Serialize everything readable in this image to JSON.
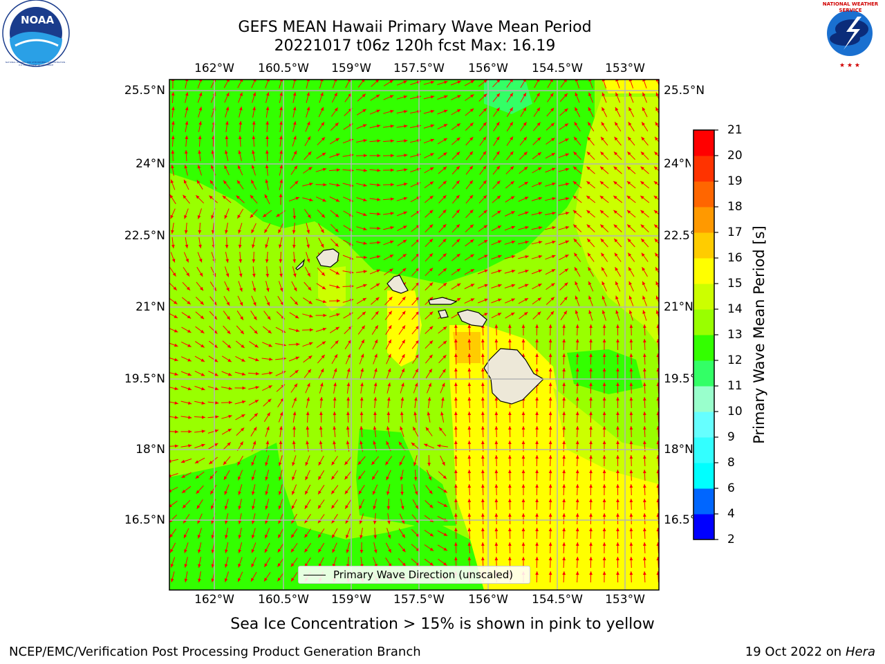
{
  "title_line1": "GEFS MEAN Hawaii Primary Wave Mean Period",
  "title_line2": "20221017 t06z 120h fcst   Max: 16.19",
  "lon_labels": [
    "162°W",
    "160.5°W",
    "159°W",
    "157.5°W",
    "156°W",
    "154.5°W",
    "153°W"
  ],
  "lat_labels": [
    "25.5°N",
    "24°N",
    "22.5°N",
    "21°N",
    "19.5°N",
    "18°N",
    "16.5°N"
  ],
  "colorbar": {
    "label": "Primary Wave Mean Period [s]",
    "ticks": [
      "2",
      "4",
      "6",
      "8",
      "9",
      "10",
      "11",
      "12",
      "13",
      "14",
      "15",
      "16",
      "17",
      "18",
      "19",
      "20",
      "21"
    ],
    "colors": [
      "#0000ff",
      "#0066ff",
      "#00ffff",
      "#33ffff",
      "#66ffff",
      "#99ffcc",
      "#33ff66",
      "#33ff00",
      "#99ff00",
      "#ccff00",
      "#ffff00",
      "#ffcc00",
      "#ff9900",
      "#ff6600",
      "#ff3300",
      "#ff0000"
    ]
  },
  "legend": {
    "label": "Primary Wave Direction (unscaled)"
  },
  "caption": "Sea Ice Concentration > 15% is shown in pink to yellow",
  "footer_left": "NCEP/EMC/Verification Post Processing Product Generation Branch",
  "footer_date": "19 Oct 2022 on",
  "footer_host": "Hera",
  "logos": {
    "noaa_text": "NOAA",
    "noaa_ring": "NATIONAL OCEANIC AND ATMOSPHERIC ADMINISTRATION · U.S. DEPARTMENT OF COMMERCE",
    "nws_ring": "NATIONAL WEATHER SERVICE"
  },
  "colors": {
    "arrow": "#ff0000",
    "land": "#ede8d8",
    "grid": "#b4b4b4"
  }
}
